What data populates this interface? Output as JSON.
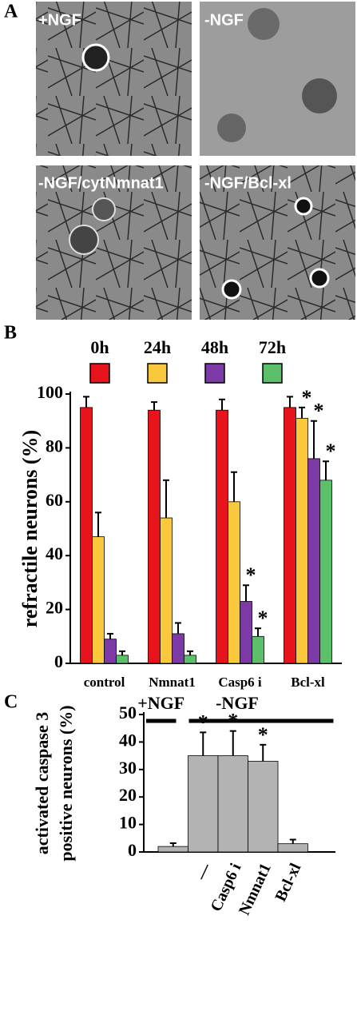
{
  "micrographs": {
    "panel_label": "A",
    "images": [
      "+NGF",
      "-NGF",
      "-NGF/cytNmnat1",
      "-NGF/Bcl-xl"
    ]
  },
  "chart_data": [
    {
      "type": "bar",
      "panel_label": "B",
      "y_label": "refractile neurons (%)",
      "categories": [
        "control",
        "Nmnat1",
        "Casp6 i",
        "Bcl-xl"
      ],
      "series": [
        {
          "name": "0h",
          "color": "#e8141c",
          "values": [
            95,
            94,
            94,
            95
          ],
          "errors": [
            4,
            3,
            4,
            4
          ],
          "significance": [
            null,
            null,
            null,
            null
          ]
        },
        {
          "name": "24h",
          "color": "#fac83c",
          "values": [
            47,
            54,
            60,
            91
          ],
          "errors": [
            9,
            14,
            11,
            4
          ],
          "significance": [
            null,
            null,
            null,
            "*"
          ]
        },
        {
          "name": "48h",
          "color": "#7b3aa6",
          "values": [
            9,
            11,
            23,
            76
          ],
          "errors": [
            2,
            4,
            6,
            14
          ],
          "significance": [
            null,
            null,
            "*",
            "*"
          ]
        },
        {
          "name": "72h",
          "color": "#5cbf6a",
          "values": [
            3,
            3,
            10,
            68
          ],
          "errors": [
            1.5,
            1.5,
            3,
            7
          ],
          "significance": [
            null,
            null,
            "*",
            "*"
          ]
        }
      ],
      "ylim": [
        0,
        100
      ],
      "yticks": [
        0,
        20,
        40,
        60,
        80,
        100
      ]
    },
    {
      "type": "bar",
      "panel_label": "C",
      "y_label": [
        "activated caspase 3",
        "positive neurons (%)"
      ],
      "categories": [
        null,
        "—",
        "Casp6 i",
        "Nmnat1",
        "Bcl-xl"
      ],
      "groups": [
        {
          "label": "+NGF",
          "from": 0,
          "to": 0
        },
        {
          "label": "-NGF",
          "from": 1,
          "to": 4
        }
      ],
      "series": [
        {
          "color": "#b3b3b3",
          "values": [
            2,
            35,
            35,
            33,
            3
          ],
          "errors": [
            1.2,
            8.5,
            9,
            6,
            1.5
          ],
          "significance": [
            null,
            "*",
            "*",
            "*",
            null
          ]
        }
      ],
      "ylim": [
        0,
        50
      ],
      "yticks": [
        0,
        10,
        20,
        30,
        40,
        50
      ]
    }
  ]
}
